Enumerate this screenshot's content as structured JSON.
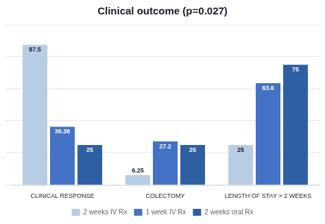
{
  "chart_data": {
    "type": "bar",
    "title": "Clinical outcome (p=0.027)",
    "categories": [
      "CLINICAL RESPONSE",
      "COLECTOMY",
      "LENGTH OF STAY > 2 WEEKS"
    ],
    "series": [
      {
        "name": "2 weeks IV Rx",
        "color": "#b8cce4",
        "values": [
          87.5,
          6.25,
          25.0
        ]
      },
      {
        "name": "1 week IV Rx",
        "color": "#4472c4",
        "values": [
          36.36,
          27.2,
          63.6
        ]
      },
      {
        "name": "2 weeks oral Rx",
        "color": "#2e5fa3",
        "values": [
          25.0,
          25.0,
          75.0
        ]
      }
    ],
    "ylim": [
      0,
      100
    ],
    "yticks": [
      0,
      20,
      40,
      60,
      80,
      100
    ],
    "grid": true,
    "data_labels": true,
    "tick_labels": "x",
    "legend": "bottom"
  }
}
